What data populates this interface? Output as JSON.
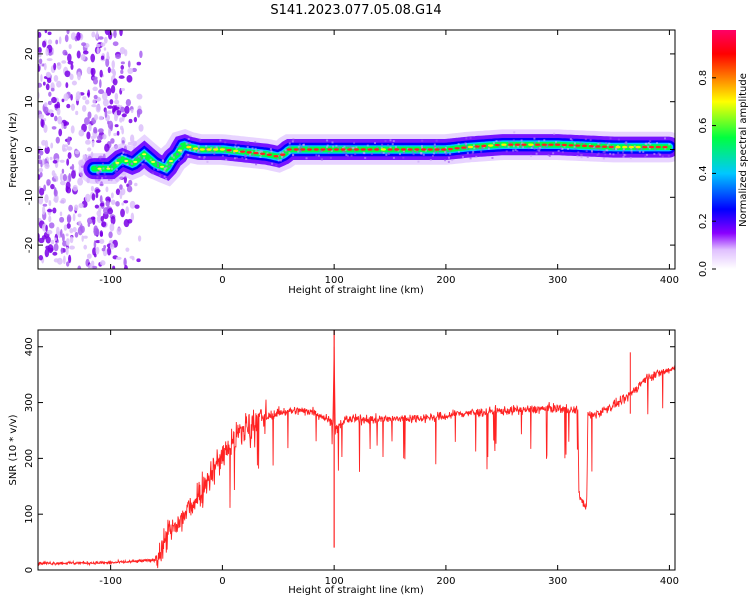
{
  "title": "S141.2023.077.05.08.G14",
  "chart_data": [
    {
      "type": "heatmap",
      "xlabel": "Height of straight line (km)",
      "ylabel": "Frequency (Hz)",
      "xlim": [
        -165,
        405
      ],
      "ylim": [
        -25,
        25
      ],
      "x_ticks": [
        -100,
        0,
        100,
        200,
        300,
        400
      ],
      "y_ticks": [
        -20,
        -10,
        0,
        10,
        20
      ],
      "colorbar": {
        "label": "Normalized spectral amplitude",
        "range": [
          0,
          1
        ],
        "ticks": [
          0.0,
          0.2,
          0.4,
          0.6,
          0.8
        ],
        "tick_labels": [
          "0.0",
          "0.2",
          "0.4",
          "0.6",
          "0.8"
        ],
        "colormap": [
          "#ffffff",
          "#8a00ff",
          "#0000ff",
          "#00c8ff",
          "#00ff40",
          "#ffff00",
          "#ff8000",
          "#ff0000",
          "#ff0066"
        ]
      },
      "ridge": {
        "x": [
          -115,
          -100,
          -90,
          -80,
          -70,
          -60,
          -50,
          -45,
          -40,
          -35,
          -30,
          -20,
          0,
          20,
          40,
          50,
          55,
          60,
          80,
          100,
          150,
          200,
          220,
          250,
          300,
          350,
          400
        ],
        "y": [
          -4,
          -4,
          -2,
          -3,
          -1,
          -3,
          -4,
          -2,
          -1,
          1,
          0.5,
          0,
          0,
          -0.5,
          -1,
          -1.5,
          -1,
          0,
          0,
          0,
          0,
          0,
          0.5,
          1,
          1,
          0.5,
          0.5
        ]
      },
      "noise_region": [
        -165,
        -95
      ]
    },
    {
      "type": "line",
      "xlabel": "Height of straight line (km)",
      "ylabel": "SNR (10 * v/v)",
      "xlim": [
        -165,
        405
      ],
      "ylim": [
        0,
        430
      ],
      "x_ticks": [
        -100,
        0,
        100,
        200,
        300,
        400
      ],
      "y_ticks": [
        0,
        100,
        200,
        300,
        400
      ],
      "color": "#ff2222",
      "series": [
        {
          "x": [
            -165,
            -100,
            -80,
            -60,
            -55,
            -50,
            -45,
            -40,
            -30,
            -20,
            -10,
            0,
            10,
            20,
            30,
            40,
            50,
            60,
            80,
            99,
            100,
            101,
            110,
            150,
            200,
            210,
            250,
            300,
            318,
            319,
            322,
            326,
            327,
            330,
            340,
            350,
            360,
            370,
            380,
            390,
            400,
            405
          ],
          "y": [
            12,
            13,
            15,
            18,
            30,
            60,
            70,
            80,
            110,
            140,
            175,
            205,
            235,
            255,
            268,
            275,
            282,
            285,
            285,
            265,
            400,
            250,
            270,
            270,
            275,
            280,
            285,
            290,
            285,
            140,
            120,
            115,
            280,
            275,
            285,
            295,
            305,
            325,
            345,
            352,
            358,
            362
          ]
        }
      ]
    }
  ]
}
